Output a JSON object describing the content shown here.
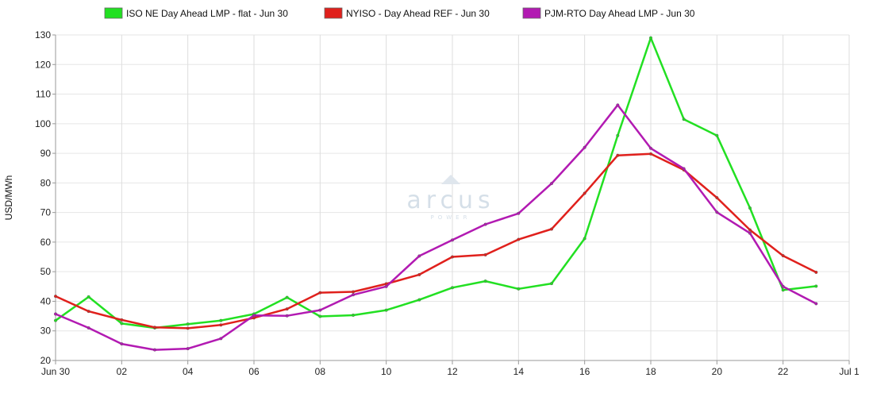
{
  "chart_data": {
    "type": "line",
    "title": "",
    "xlabel": "",
    "ylabel": "USD/MWh",
    "x": [
      "Jun 30",
      "01",
      "02",
      "03",
      "04",
      "05",
      "06",
      "07",
      "08",
      "09",
      "10",
      "11",
      "12",
      "13",
      "14",
      "15",
      "16",
      "17",
      "18",
      "19",
      "20",
      "21",
      "22",
      "23"
    ],
    "x_tick_labels": [
      "Jun 30",
      "02",
      "04",
      "06",
      "08",
      "10",
      "12",
      "14",
      "16",
      "18",
      "20",
      "22",
      "Jul 1"
    ],
    "y_ticks": [
      20,
      30,
      40,
      50,
      60,
      70,
      80,
      90,
      100,
      110,
      120,
      130
    ],
    "ylim": [
      20,
      130
    ],
    "grid": true,
    "legend_position": "top",
    "series": [
      {
        "name": "ISO NE Day Ahead LMP - flat - Jun 30",
        "color": "#22e022",
        "values": [
          33.5,
          41.5,
          32.5,
          31,
          32.3,
          33.5,
          35.7,
          41.3,
          34.9,
          35.3,
          37,
          40.5,
          44.6,
          46.8,
          44.2,
          46,
          61.2,
          96,
          129,
          101.5,
          96,
          71.5,
          43.8,
          45.1
        ]
      },
      {
        "name": "NYISO - Day Ahead REF - Jun 30",
        "color": "#e0201c",
        "values": [
          41.7,
          36.6,
          33.7,
          31.2,
          30.9,
          32,
          34.4,
          37.4,
          42.9,
          43.2,
          45.9,
          49,
          55,
          55.7,
          60.9,
          64.4,
          76.5,
          89.3,
          89.8,
          84.4,
          75,
          64.1,
          55.4,
          49.8
        ]
      },
      {
        "name": "PJM-RTO Day Ahead LMP - Jun 30",
        "color": "#b21ab2",
        "values": [
          35.7,
          31,
          25.6,
          23.6,
          24,
          27.4,
          35.2,
          35.1,
          37,
          42.2,
          45,
          55.3,
          60.7,
          66,
          69.7,
          79.8,
          92,
          106.3,
          91.7,
          84.8,
          70.1,
          63,
          45,
          39.2
        ]
      }
    ]
  },
  "watermark": {
    "text": "arcus",
    "subtext": "POWER"
  }
}
